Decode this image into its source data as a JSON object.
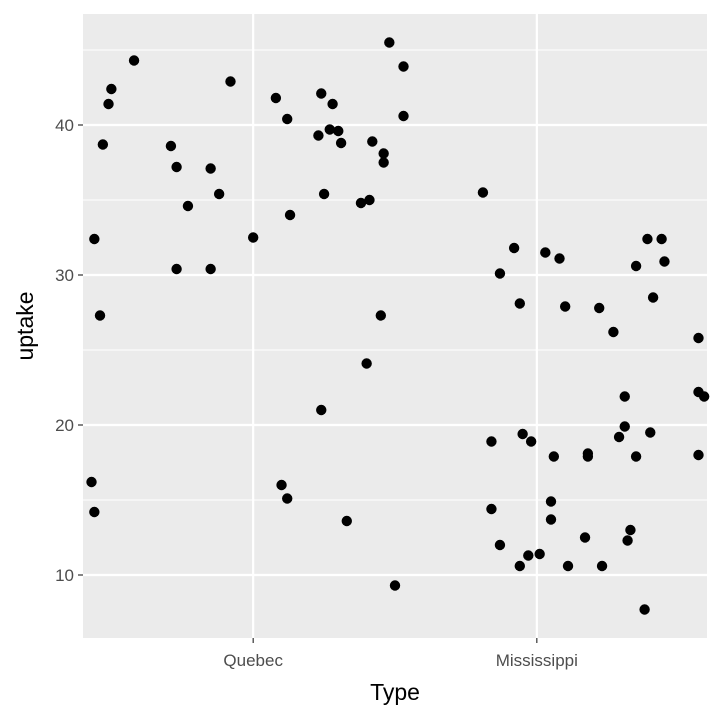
{
  "chart_data": {
    "type": "scatter",
    "title": "",
    "xlabel": "Type",
    "ylabel": "uptake",
    "categories": [
      "Quebec",
      "Mississippi"
    ],
    "ylim": [
      5.8,
      47.4
    ],
    "y_ticks": [
      10,
      20,
      30,
      40
    ],
    "grid": true,
    "legend": "none",
    "colors": {
      "panel": "#ebebeb",
      "grid": "#ffffff",
      "point": "#000000",
      "text": "#4d4d4d",
      "tick": "#333333"
    },
    "points": [
      {
        "x": 0.58,
        "y": 44.3
      },
      {
        "x": 0.5,
        "y": 42.4
      },
      {
        "x": 0.49,
        "y": 41.4
      },
      {
        "x": 0.47,
        "y": 38.7
      },
      {
        "x": 0.44,
        "y": 32.4
      },
      {
        "x": 0.46,
        "y": 27.3
      },
      {
        "x": 0.43,
        "y": 16.2
      },
      {
        "x": 0.44,
        "y": 14.2
      },
      {
        "x": 0.71,
        "y": 38.6
      },
      {
        "x": 0.73,
        "y": 37.2
      },
      {
        "x": 0.77,
        "y": 34.6
      },
      {
        "x": 0.73,
        "y": 30.4
      },
      {
        "x": 0.85,
        "y": 37.1
      },
      {
        "x": 0.88,
        "y": 35.4
      },
      {
        "x": 0.85,
        "y": 30.4
      },
      {
        "x": 0.92,
        "y": 42.9
      },
      {
        "x": 1.0,
        "y": 32.5
      },
      {
        "x": 1.08,
        "y": 41.8
      },
      {
        "x": 1.12,
        "y": 40.4
      },
      {
        "x": 1.13,
        "y": 34.0
      },
      {
        "x": 1.1,
        "y": 16.0
      },
      {
        "x": 1.12,
        "y": 15.1
      },
      {
        "x": 1.24,
        "y": 42.1
      },
      {
        "x": 1.28,
        "y": 41.4
      },
      {
        "x": 1.27,
        "y": 39.7
      },
      {
        "x": 1.3,
        "y": 39.6
      },
      {
        "x": 1.23,
        "y": 39.3
      },
      {
        "x": 1.31,
        "y": 38.8
      },
      {
        "x": 1.25,
        "y": 35.4
      },
      {
        "x": 1.24,
        "y": 21.0
      },
      {
        "x": 1.33,
        "y": 13.6
      },
      {
        "x": 1.42,
        "y": 38.9
      },
      {
        "x": 1.38,
        "y": 34.8
      },
      {
        "x": 1.41,
        "y": 35.0
      },
      {
        "x": 1.4,
        "y": 24.1
      },
      {
        "x": 1.46,
        "y": 38.1
      },
      {
        "x": 1.46,
        "y": 37.5
      },
      {
        "x": 1.45,
        "y": 27.3
      },
      {
        "x": 1.48,
        "y": 45.5
      },
      {
        "x": 1.53,
        "y": 43.9
      },
      {
        "x": 1.53,
        "y": 40.6
      },
      {
        "x": 1.5,
        "y": 9.3
      },
      {
        "x": 1.81,
        "y": 35.5
      },
      {
        "x": 1.84,
        "y": 18.9
      },
      {
        "x": 1.84,
        "y": 14.4
      },
      {
        "x": 1.87,
        "y": 12.0
      },
      {
        "x": 1.87,
        "y": 30.1
      },
      {
        "x": 1.92,
        "y": 31.8
      },
      {
        "x": 1.94,
        "y": 28.1
      },
      {
        "x": 1.95,
        "y": 19.4
      },
      {
        "x": 1.98,
        "y": 18.9
      },
      {
        "x": 1.94,
        "y": 10.6
      },
      {
        "x": 1.97,
        "y": 11.3
      },
      {
        "x": 2.01,
        "y": 11.4
      },
      {
        "x": 2.03,
        "y": 31.5
      },
      {
        "x": 2.08,
        "y": 31.1
      },
      {
        "x": 2.06,
        "y": 17.9
      },
      {
        "x": 2.05,
        "y": 14.9
      },
      {
        "x": 2.05,
        "y": 13.7
      },
      {
        "x": 2.1,
        "y": 27.9
      },
      {
        "x": 2.11,
        "y": 10.6
      },
      {
        "x": 2.18,
        "y": 18.1
      },
      {
        "x": 2.18,
        "y": 17.9
      },
      {
        "x": 2.17,
        "y": 12.5
      },
      {
        "x": 2.22,
        "y": 27.8
      },
      {
        "x": 2.23,
        "y": 10.6
      },
      {
        "x": 2.27,
        "y": 26.2
      },
      {
        "x": 2.29,
        "y": 19.2
      },
      {
        "x": 2.31,
        "y": 21.9
      },
      {
        "x": 2.31,
        "y": 19.9
      },
      {
        "x": 2.32,
        "y": 12.3
      },
      {
        "x": 2.33,
        "y": 13.0
      },
      {
        "x": 2.35,
        "y": 30.6
      },
      {
        "x": 2.35,
        "y": 17.9
      },
      {
        "x": 2.38,
        "y": 7.7
      },
      {
        "x": 2.39,
        "y": 32.4
      },
      {
        "x": 2.4,
        "y": 19.5
      },
      {
        "x": 2.41,
        "y": 28.5
      },
      {
        "x": 2.44,
        "y": 32.4
      },
      {
        "x": 2.45,
        "y": 30.9
      },
      {
        "x": 2.57,
        "y": 25.8
      },
      {
        "x": 2.57,
        "y": 22.2
      },
      {
        "x": 2.57,
        "y": 18.0
      },
      {
        "x": 2.59,
        "y": 21.9
      }
    ]
  }
}
